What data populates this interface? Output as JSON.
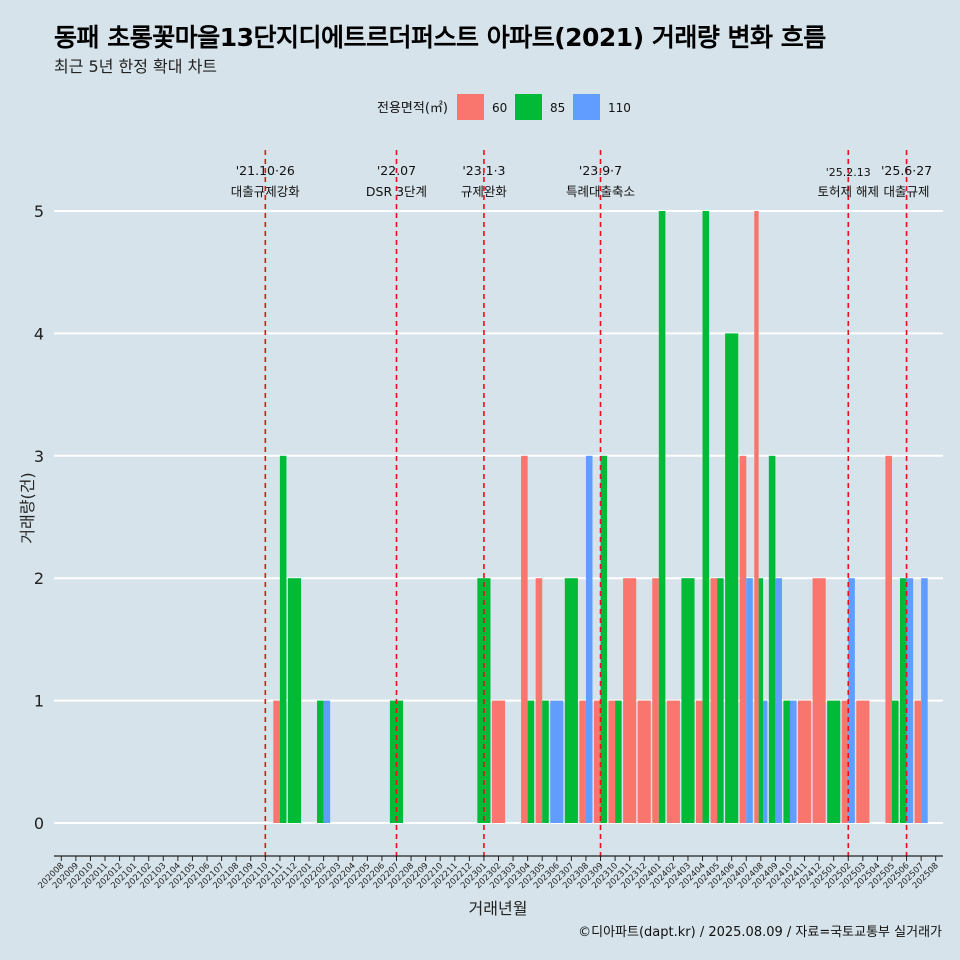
{
  "title": "동패 초롱꽃마을13단지디에트르더퍼스트 아파트(2021) 거래량 변화 흐름",
  "subtitle": "최근 5년 한정 확대 차트",
  "caption": "©디아파트(dapt.kr) / 2025.08.09 / 자료=국토교통부 실거래가",
  "colors": {
    "s60": "#f8766d",
    "s85": "#00ba38",
    "s110": "#619cff",
    "event_line": "#e8101a",
    "grid": "#ffffff",
    "background": "#d6e3ea"
  },
  "chart_data": {
    "type": "bar",
    "xlabel": "거래년월",
    "ylabel": "거래량(건)",
    "ylim": [
      0,
      5
    ],
    "yticks": [
      0,
      1,
      2,
      3,
      4,
      5
    ],
    "legend_title": "전용면적(㎡)",
    "legend_position": "top",
    "grid": true,
    "categories": [
      "202008",
      "202009",
      "202010",
      "202011",
      "202012",
      "202101",
      "202102",
      "202103",
      "202104",
      "202105",
      "202106",
      "202107",
      "202108",
      "202109",
      "202110",
      "202111",
      "202112",
      "202201",
      "202202",
      "202203",
      "202204",
      "202205",
      "202206",
      "202207",
      "202208",
      "202209",
      "202210",
      "202211",
      "202212",
      "202301",
      "202302",
      "202303",
      "202304",
      "202305",
      "202306",
      "202307",
      "202308",
      "202309",
      "202310",
      "202311",
      "202312",
      "202401",
      "202402",
      "202403",
      "202404",
      "202405",
      "202406",
      "202407",
      "202408",
      "202409",
      "202410",
      "202411",
      "202412",
      "202501",
      "202502",
      "202503",
      "202504",
      "202505",
      "202506",
      "202507",
      "202508"
    ],
    "series": [
      {
        "name": "60",
        "values": [
          0,
          0,
          0,
          0,
          0,
          0,
          0,
          0,
          0,
          0,
          0,
          0,
          0,
          0,
          0,
          1,
          0,
          0,
          0,
          0,
          0,
          0,
          0,
          0,
          0,
          0,
          0,
          0,
          0,
          0,
          1,
          0,
          3,
          2,
          0,
          0,
          1,
          1,
          1,
          2,
          1,
          2,
          1,
          0,
          1,
          2,
          0,
          3,
          5,
          0,
          0,
          1,
          2,
          0,
          1,
          1,
          0,
          3,
          0,
          1,
          0
        ]
      },
      {
        "name": "85",
        "values": [
          0,
          0,
          0,
          0,
          0,
          0,
          0,
          0,
          0,
          0,
          0,
          0,
          0,
          0,
          0,
          3,
          2,
          0,
          1,
          0,
          0,
          0,
          0,
          1,
          0,
          0,
          0,
          0,
          0,
          2,
          0,
          0,
          1,
          1,
          0,
          2,
          0,
          3,
          1,
          0,
          0,
          5,
          0,
          2,
          5,
          2,
          4,
          0,
          2,
          3,
          1,
          0,
          0,
          1,
          0,
          0,
          0,
          1,
          2,
          0,
          0
        ]
      },
      {
        "name": "110",
        "values": [
          0,
          0,
          0,
          0,
          0,
          0,
          0,
          0,
          0,
          0,
          0,
          0,
          0,
          0,
          0,
          0,
          0,
          0,
          1,
          0,
          0,
          0,
          0,
          0,
          0,
          0,
          0,
          0,
          0,
          0,
          0,
          0,
          0,
          0,
          1,
          0,
          3,
          0,
          0,
          0,
          0,
          0,
          0,
          0,
          0,
          0,
          0,
          2,
          1,
          2,
          1,
          0,
          0,
          0,
          2,
          0,
          0,
          0,
          2,
          2,
          0
        ]
      }
    ],
    "annotations": [
      {
        "month": "202110",
        "date": "'21.10·26",
        "label": "대출규제강화"
      },
      {
        "month": "202207",
        "date": "'22.07",
        "label": "DSR 3단계"
      },
      {
        "month": "202301",
        "date": "'23.1·3",
        "label": "규제완화"
      },
      {
        "month": "202309",
        "date": "'23.9·7",
        "label": "특례대출축소"
      },
      {
        "month": "202502",
        "date": "'25.2.13",
        "label": "토허제 해제"
      },
      {
        "month": "202506",
        "date": "'25.6·27",
        "label": "대출규제"
      }
    ]
  }
}
